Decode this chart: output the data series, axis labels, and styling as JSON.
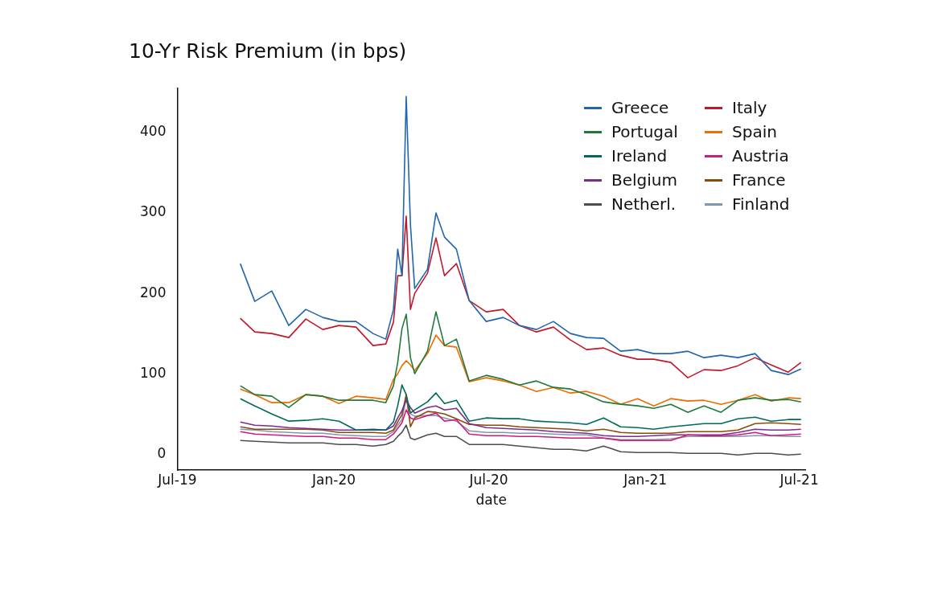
{
  "chart_data": {
    "type": "line",
    "title": "10-Yr Risk Premium (in bps)",
    "xlabel": "date",
    "x": [
      "2019-09-13",
      "2019-09-30",
      "2019-10-20",
      "2019-11-09",
      "2019-11-29",
      "2019-12-19",
      "2020-01-07",
      "2020-01-27",
      "2020-02-16",
      "2020-03-02",
      "2020-03-11",
      "2020-03-16",
      "2020-03-21",
      "2020-03-26",
      "2020-03-31",
      "2020-04-05",
      "2020-04-20",
      "2020-04-30",
      "2020-05-10",
      "2020-05-24",
      "2020-06-08",
      "2020-06-28",
      "2020-07-18",
      "2020-08-06",
      "2020-08-26",
      "2020-09-15",
      "2020-10-05",
      "2020-10-24",
      "2020-11-13",
      "2020-12-03",
      "2020-12-23",
      "2021-01-11",
      "2021-01-31",
      "2021-02-20",
      "2021-03-11",
      "2021-03-31",
      "2021-04-20",
      "2021-05-10",
      "2021-05-29",
      "2021-06-18",
      "2021-07-03"
    ],
    "series": [
      {
        "name": "Greece",
        "color": "#2166b0",
        "values": [
          237,
          190,
          203,
          160,
          180,
          170,
          165,
          165,
          150,
          143,
          180,
          255,
          222,
          445,
          285,
          206,
          230,
          300,
          270,
          255,
          191,
          165,
          170,
          160,
          155,
          165,
          150,
          145,
          144,
          128,
          130,
          125,
          125,
          128,
          120,
          123,
          120,
          125,
          104,
          99,
          106
        ]
      },
      {
        "name": "Italy",
        "color": "#c0182b",
        "values": [
          169,
          152,
          150,
          145,
          168,
          155,
          160,
          158,
          135,
          137,
          164,
          222,
          222,
          296,
          180,
          200,
          225,
          269,
          222,
          237,
          191,
          177,
          180,
          160,
          152,
          158,
          142,
          130,
          132,
          123,
          118,
          118,
          114,
          95,
          105,
          104,
          110,
          120,
          111,
          102,
          114
        ]
      },
      {
        "name": "Portugal",
        "color": "#1f7a3a",
        "values": [
          85,
          74,
          72,
          58,
          74,
          72,
          67,
          67,
          67,
          64,
          85,
          114,
          156,
          174,
          120,
          100,
          128,
          177,
          135,
          143,
          91,
          98,
          93,
          86,
          91,
          83,
          81,
          74,
          65,
          62,
          60,
          57,
          62,
          52,
          60,
          52,
          67,
          70,
          67,
          68,
          65
        ]
      },
      {
        "name": "Spain",
        "color": "#ef6c00",
        "values": [
          81,
          74,
          64,
          64,
          74,
          72,
          63,
          72,
          70,
          68,
          93,
          100,
          110,
          116,
          111,
          104,
          125,
          148,
          135,
          133,
          90,
          95,
          91,
          86,
          78,
          83,
          76,
          78,
          72,
          62,
          69,
          60,
          69,
          66,
          67,
          62,
          67,
          74,
          66,
          70,
          69
        ]
      },
      {
        "name": "Ireland",
        "color": "#006a5b",
        "values": [
          69,
          60,
          50,
          41,
          42,
          44,
          41,
          30,
          31,
          30,
          40,
          60,
          86,
          74,
          51,
          55,
          65,
          76,
          63,
          67,
          41,
          45,
          44,
          44,
          41,
          40,
          39,
          37,
          45,
          34,
          33,
          31,
          34,
          36,
          38,
          38,
          44,
          46,
          41,
          43,
          43
        ]
      },
      {
        "name": "Austria",
        "color": "#d11a7a",
        "values": [
          28,
          25,
          24,
          23,
          22,
          22,
          20,
          20,
          18,
          18,
          25,
          32,
          39,
          55,
          45,
          43,
          48,
          51,
          41,
          43,
          25,
          23,
          23,
          22,
          22,
          21,
          20,
          20,
          20,
          17,
          17,
          17,
          17,
          24,
          23,
          23,
          24,
          27,
          23,
          24,
          25
        ]
      },
      {
        "name": "Belgium",
        "color": "#7b2d8e",
        "values": [
          40,
          36,
          35,
          33,
          32,
          31,
          30,
          30,
          30,
          30,
          35,
          45,
          54,
          67,
          58,
          51,
          58,
          60,
          55,
          57,
          38,
          33,
          32,
          31,
          30,
          28,
          27,
          26,
          23,
          22,
          22,
          23,
          24,
          24,
          24,
          24,
          27,
          31,
          30,
          30,
          31
        ]
      },
      {
        "name": "France",
        "color": "#8b4a0a",
        "values": [
          34,
          31,
          31,
          31,
          31,
          30,
          27,
          27,
          27,
          26,
          30,
          40,
          49,
          74,
          34,
          45,
          53,
          52,
          50,
          44,
          37,
          36,
          36,
          34,
          33,
          32,
          31,
          29,
          31,
          27,
          26,
          26,
          26,
          28,
          28,
          28,
          30,
          38,
          39,
          38,
          37
        ]
      },
      {
        "name": "Netherl.",
        "color": "#4d4d4d",
        "values": [
          17,
          16,
          15,
          14,
          14,
          14,
          12,
          12,
          10,
          12,
          16,
          22,
          27,
          36,
          20,
          18,
          24,
          26,
          22,
          22,
          12,
          12,
          12,
          10,
          8,
          6,
          6,
          4,
          10,
          3,
          2,
          2,
          2,
          1,
          1,
          1,
          -1,
          1,
          1,
          -1,
          0
        ]
      },
      {
        "name": "Finland",
        "color": "#7f97b2",
        "values": [
          31,
          30,
          28,
          27,
          26,
          26,
          24,
          23,
          22,
          22,
          28,
          36,
          43,
          70,
          50,
          47,
          48,
          48,
          45,
          41,
          29,
          27,
          27,
          26,
          26,
          25,
          24,
          24,
          20,
          18,
          18,
          18,
          19,
          22,
          22,
          22,
          22,
          23,
          23,
          22,
          22
        ]
      }
    ],
    "xlim": [
      "2019-07-01",
      "2021-07-08"
    ],
    "xticks": [
      {
        "value": "2019-07-01",
        "label": "Jul-19"
      },
      {
        "value": "2020-01-01",
        "label": "Jan-20"
      },
      {
        "value": "2020-07-01",
        "label": "Jul-20"
      },
      {
        "value": "2021-01-01",
        "label": "Jan-21"
      },
      {
        "value": "2021-07-01",
        "label": "Jul-21"
      }
    ],
    "ylim": [
      -20,
      455
    ],
    "yticks": [
      0,
      100,
      200,
      300,
      400
    ],
    "grid": false,
    "legend": "top right",
    "marker": "none",
    "line_style": "solid"
  }
}
